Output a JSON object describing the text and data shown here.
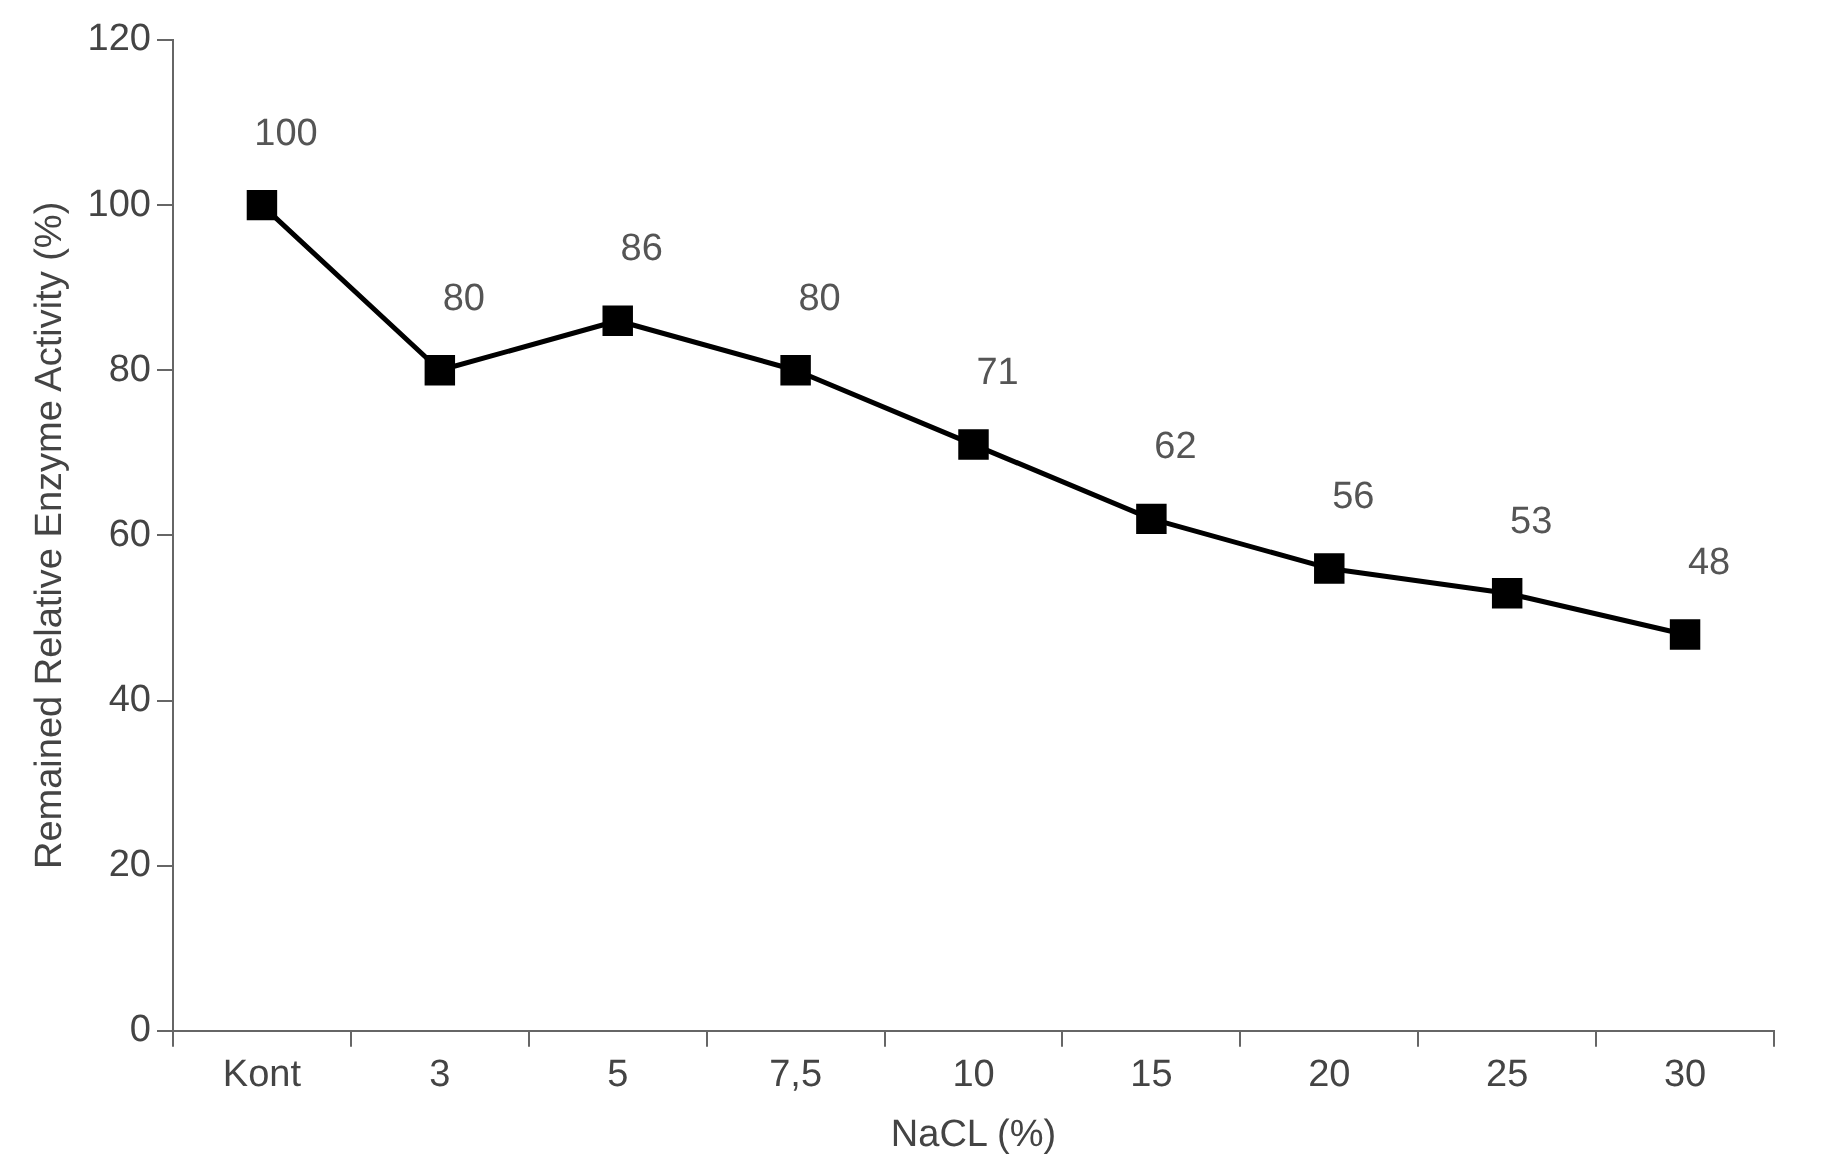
{
  "chart_data": {
    "type": "line",
    "xlabel": "NaCL (%)",
    "ylabel": "Remained Relative Enzyme Activity (%)",
    "categories": [
      "Kont",
      "3",
      "5",
      "7,5",
      "10",
      "15",
      "20",
      "25",
      "30"
    ],
    "values": [
      100,
      80,
      86,
      80,
      71,
      62,
      56,
      53,
      48
    ],
    "color": "#000000",
    "marker": "square",
    "line_style": "solid",
    "data_labels": true,
    "grid": false,
    "legend": false,
    "ylim": [
      0,
      120
    ],
    "yticks": [
      0,
      20,
      40,
      60,
      80,
      100,
      120
    ]
  }
}
